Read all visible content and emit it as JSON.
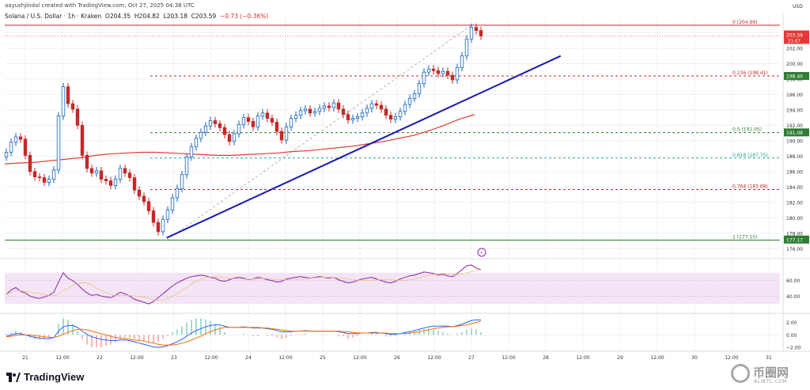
{
  "header": {
    "credit": "aayushjindal created with TradingView.com, Oct 27, 2025 04:38 UTC",
    "symbol": "Solana / U.S. Dollar · 1h · Kraken",
    "open": "O204.35",
    "high": "H204.82",
    "low": "L203.18",
    "close": "C203.59",
    "change": "−0.73 (−0.36%)"
  },
  "branding": {
    "logo_text": "TradingView",
    "watermark_title": "币圈网",
    "watermark_url": "ALIBTC.COM"
  },
  "colors": {
    "up": "#26a69a",
    "down": "#ef5350",
    "candle_up": "#1565c0",
    "trendline": "#1a1ab0",
    "ma": "#e53935",
    "fib_green": "#2e7d32",
    "fib_red": "#c62828",
    "rsi": "#8e24aa",
    "rsi_band": "#f3e5f5"
  },
  "chart_data": [
    {
      "type": "candlestick",
      "title": "SOL/USD 1h",
      "ylim": [
        175.0,
        206.0
      ],
      "price_ticks": [
        "204.00",
        "202.00",
        "200.00",
        "198.00",
        "196.00",
        "194.00",
        "192.00",
        "190.00",
        "188.00",
        "186.00",
        "184.00",
        "182.00",
        "180.00",
        "178.00",
        "176.00"
      ],
      "x_labels": [
        "21",
        "12:00",
        "22",
        "12:00",
        "23",
        "12:00",
        "24",
        "12:00",
        "25",
        "12:00",
        "26",
        "12:00",
        "27",
        "12:00",
        "28",
        "12:00",
        "29",
        "12:00",
        "30",
        "12:00",
        "31"
      ],
      "fib_levels": [
        {
          "label": "0 (204.99)",
          "value": 204.99,
          "color": "#c62828",
          "style": "solid"
        },
        {
          "label": "0.236 (198.41)",
          "value": 198.41,
          "color": "#c62828",
          "style": "dashed"
        },
        {
          "label": "0.5 (191.05)",
          "value": 191.05,
          "color": "#2e7d32",
          "style": "dashed"
        },
        {
          "label": "0.618 (187.75)",
          "value": 187.75,
          "color": "#26a69a",
          "style": "dashed"
        },
        {
          "label": "0.764 (183.68)",
          "value": 183.68,
          "color": "#c62828",
          "style": "dashed"
        },
        {
          "label": "1 (177.10)",
          "value": 177.1,
          "color": "#2e7d32",
          "style": "solid"
        }
      ],
      "price_markers": [
        {
          "label": "198.40",
          "value": 198.4,
          "color": "#2e7d32"
        },
        {
          "label": "191.08",
          "value": 191.08,
          "color": "#2e7d32"
        },
        {
          "label": "177.17",
          "value": 177.17,
          "color": "#2e7d32"
        }
      ],
      "current_price": {
        "label": "203.59",
        "countdown": "21:07",
        "value": 203.59,
        "color": "#e53935"
      },
      "trendline": {
        "from": [
          22.9,
          177.4
        ],
        "to": [
          28.2,
          201.0
        ]
      },
      "fib_anchor_line": {
        "from": [
          22.9,
          177.1
        ],
        "to": [
          27.0,
          204.99
        ]
      },
      "ma_values": [
        187.0,
        187.1,
        187.2,
        187.4,
        187.6,
        187.8,
        188.1,
        188.3,
        188.4,
        188.5,
        188.5,
        188.4,
        188.3,
        188.2,
        188.1,
        188.1,
        188.2,
        188.3,
        188.4,
        188.6,
        188.7,
        188.9,
        189.1,
        189.3,
        189.6,
        189.9,
        190.3,
        190.7,
        191.3,
        192.0,
        192.8,
        193.4
      ],
      "closes": [
        188.5,
        189.8,
        190.5,
        190.2,
        188.1,
        186.0,
        185.3,
        185.2,
        184.6,
        185.0,
        186.2,
        193.2,
        197.0,
        194.8,
        194.1,
        192.0,
        188.1,
        186.4,
        185.8,
        186.1,
        185.0,
        184.8,
        184.2,
        185.0,
        186.4,
        185.8,
        185.2,
        183.6,
        182.8,
        182.1,
        180.9,
        179.4,
        178.2,
        179.8,
        181.0,
        182.6,
        183.8,
        185.6,
        187.9,
        189.2,
        190.3,
        191.1,
        191.9,
        192.6,
        192.2,
        191.7,
        190.8,
        189.9,
        190.9,
        192.1,
        193.0,
        192.5,
        191.8,
        193.2,
        193.6,
        192.9,
        192.4,
        191.2,
        190.1,
        191.8,
        192.9,
        193.3,
        193.9,
        194.1,
        193.6,
        193.8,
        194.2,
        194.5,
        194.3,
        194.9,
        194.1,
        193.4,
        192.7,
        192.9,
        193.1,
        193.6,
        194.2,
        194.8,
        194.6,
        194.1,
        193.3,
        192.8,
        193.1,
        193.8,
        194.7,
        195.5,
        196.1,
        197.4,
        198.9,
        199.3,
        199.1,
        198.7,
        199.0,
        198.5,
        197.9,
        199.5,
        201.0,
        203.2,
        204.7,
        204.3,
        203.59
      ],
      "rsi": {
        "ticks": [
          "60.00",
          "40.00"
        ],
        "ylim": [
          20,
          85
        ],
        "band": [
          30,
          70
        ],
        "values": [
          42,
          48,
          51,
          46,
          44,
          40,
          38,
          37,
          39,
          41,
          45,
          58,
          70,
          63,
          60,
          55,
          49,
          44,
          41,
          42,
          40,
          39,
          38,
          41,
          45,
          43,
          40,
          36,
          34,
          32,
          30,
          33,
          38,
          43,
          48,
          53,
          57,
          60,
          63,
          65,
          66,
          67,
          66,
          64,
          63,
          60,
          59,
          61,
          63,
          64,
          63,
          61,
          62,
          64,
          63,
          61,
          60,
          58,
          59,
          62,
          63,
          64,
          65,
          64,
          63,
          64,
          65,
          64,
          63,
          64,
          61,
          59,
          57,
          58,
          60,
          62,
          63,
          64,
          62,
          60,
          58,
          57,
          59,
          62,
          64,
          66,
          67,
          69,
          71,
          70,
          69,
          67,
          68,
          66,
          65,
          69,
          74,
          79,
          80,
          76,
          74
        ]
      },
      "macd": {
        "ticks": [
          "2.00",
          "0.00",
          "-2.00"
        ],
        "ylim": [
          -2.6,
          3.2
        ],
        "macd_values": [
          -0.2,
          0.0,
          0.2,
          0.2,
          0.0,
          -0.2,
          -0.4,
          -0.5,
          -0.6,
          -0.6,
          -0.4,
          0.6,
          1.3,
          1.5,
          1.5,
          1.2,
          0.6,
          0.1,
          -0.3,
          -0.5,
          -0.7,
          -0.8,
          -0.9,
          -0.9,
          -0.8,
          -0.8,
          -0.9,
          -1.1,
          -1.3,
          -1.5,
          -1.7,
          -1.9,
          -2.0,
          -1.9,
          -1.7,
          -1.4,
          -1.1,
          -0.7,
          -0.2,
          0.3,
          0.7,
          1.0,
          1.3,
          1.5,
          1.6,
          1.6,
          1.4,
          1.2,
          1.2,
          1.2,
          1.3,
          1.2,
          1.1,
          1.1,
          1.1,
          1.0,
          0.9,
          0.7,
          0.5,
          0.5,
          0.5,
          0.6,
          0.6,
          0.7,
          0.6,
          0.6,
          0.6,
          0.6,
          0.6,
          0.6,
          0.5,
          0.4,
          0.2,
          0.2,
          0.2,
          0.3,
          0.3,
          0.4,
          0.4,
          0.3,
          0.2,
          0.1,
          0.1,
          0.2,
          0.4,
          0.5,
          0.7,
          0.9,
          1.1,
          1.3,
          1.4,
          1.4,
          1.4,
          1.4,
          1.3,
          1.5,
          1.7,
          2.0,
          2.3,
          2.4,
          2.4
        ],
        "signal_values": [
          -0.3,
          -0.2,
          -0.1,
          0.0,
          0.0,
          0.0,
          -0.1,
          -0.2,
          -0.3,
          -0.4,
          -0.4,
          -0.2,
          0.1,
          0.4,
          0.7,
          0.9,
          0.9,
          0.8,
          0.6,
          0.4,
          0.2,
          0.0,
          -0.2,
          -0.4,
          -0.5,
          -0.6,
          -0.7,
          -0.8,
          -0.9,
          -1.0,
          -1.2,
          -1.3,
          -1.5,
          -1.6,
          -1.6,
          -1.6,
          -1.5,
          -1.3,
          -1.1,
          -0.8,
          -0.5,
          -0.2,
          0.2,
          0.5,
          0.8,
          1.0,
          1.2,
          1.2,
          1.2,
          1.2,
          1.2,
          1.2,
          1.2,
          1.2,
          1.1,
          1.1,
          1.0,
          0.9,
          0.8,
          0.7,
          0.6,
          0.6,
          0.6,
          0.6,
          0.6,
          0.6,
          0.6,
          0.6,
          0.6,
          0.6,
          0.6,
          0.5,
          0.5,
          0.4,
          0.3,
          0.3,
          0.3,
          0.3,
          0.3,
          0.3,
          0.3,
          0.2,
          0.2,
          0.2,
          0.2,
          0.3,
          0.4,
          0.5,
          0.7,
          0.8,
          1.0,
          1.1,
          1.2,
          1.3,
          1.3,
          1.4,
          1.5,
          1.6,
          1.8,
          2.0,
          2.2
        ]
      }
    }
  ]
}
